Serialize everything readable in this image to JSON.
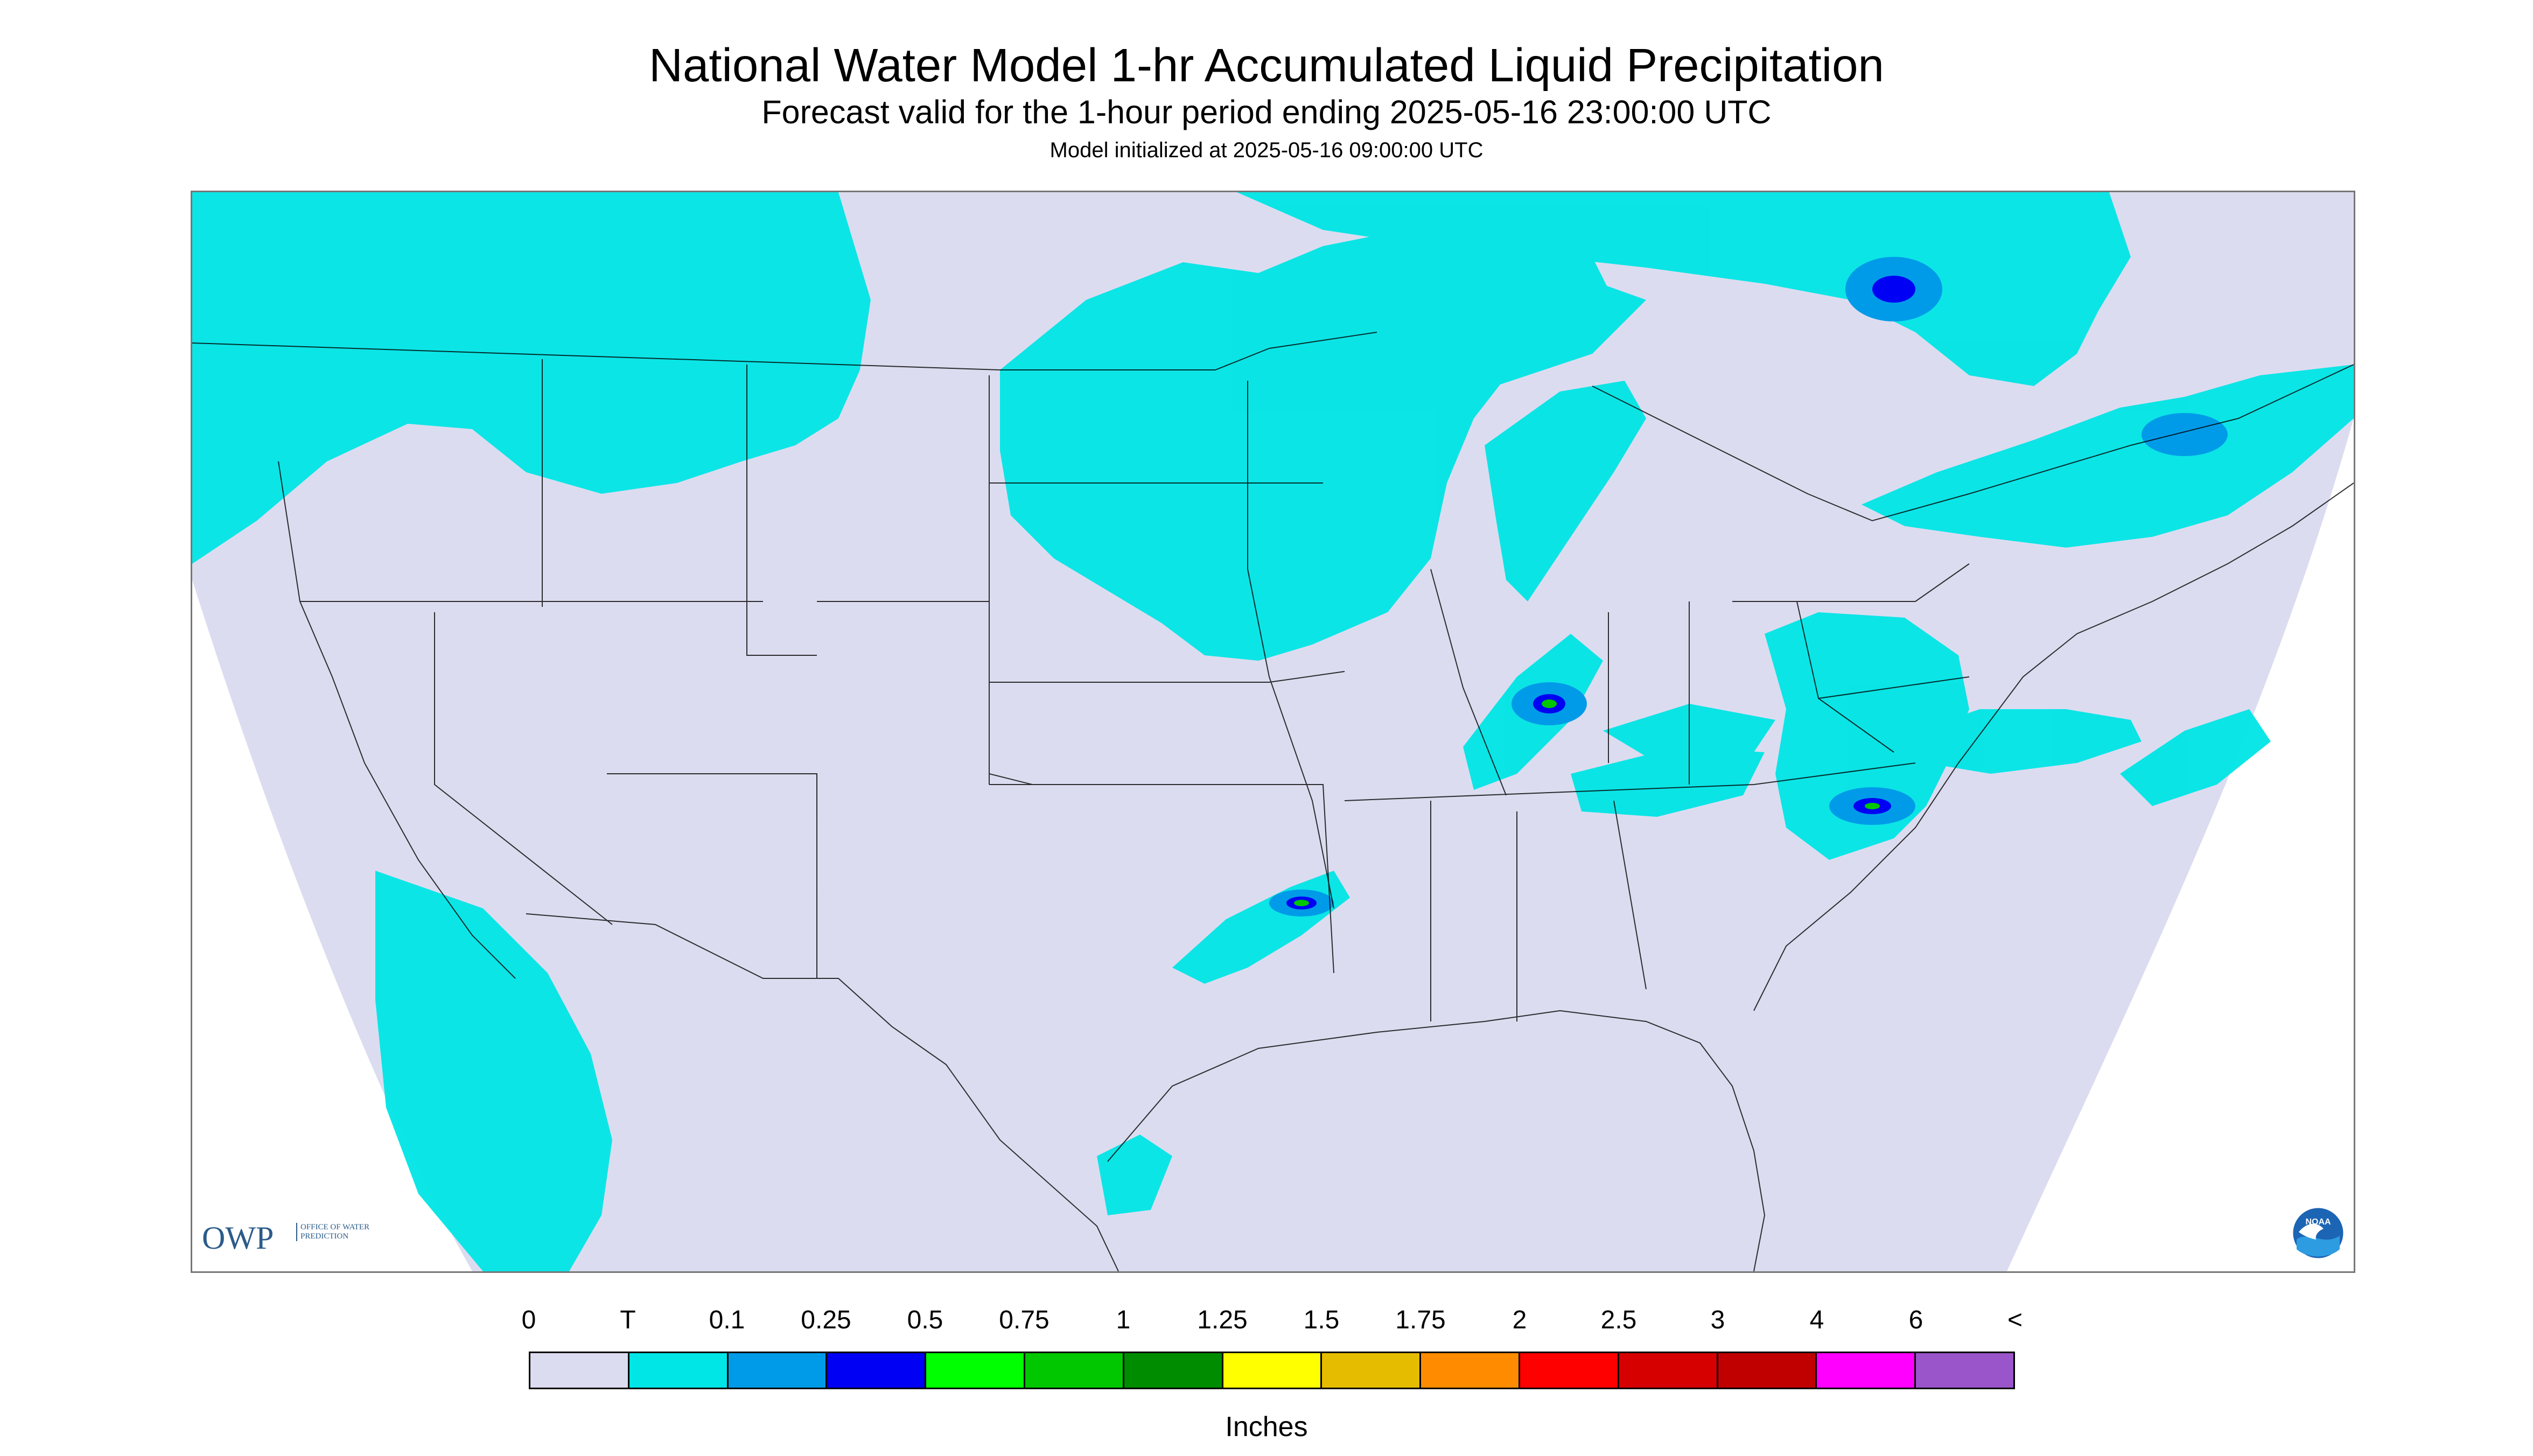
{
  "header": {
    "title": "National Water Model 1-hr Accumulated Liquid Precipitation",
    "subtitle": "Forecast valid for the 1-hour period ending 2025-05-16 23:00:00 UTC",
    "init": "Model initialized at 2025-05-16 09:00:00 UTC"
  },
  "logos": {
    "owp_abbrev": "OWP",
    "owp_full": "OFFICE OF WATER PREDICTION",
    "noaa": "NOAA"
  },
  "legend": {
    "units": "Inches",
    "labels": [
      "0",
      "T",
      "0.1",
      "0.25",
      "0.5",
      "0.75",
      "1",
      "1.25",
      "1.5",
      "1.75",
      "2",
      "2.5",
      "3",
      "4",
      "6",
      "<"
    ],
    "colors": [
      "#dcdcf0",
      "#00e5e5",
      "#009be8",
      "#0000f5",
      "#00ff00",
      "#00c700",
      "#008c00",
      "#ffff00",
      "#e6bc00",
      "#ff8c00",
      "#ff0000",
      "#d60000",
      "#c00000",
      "#ff00ff",
      "#9955c9"
    ]
  },
  "colors": {
    "domain": "#dcdcf0",
    "precip_trace": "#00e5e5",
    "precip_light": "#009be8",
    "precip_mod": "#0000f5",
    "precip_green": "#00c700",
    "border": "#000000"
  }
}
